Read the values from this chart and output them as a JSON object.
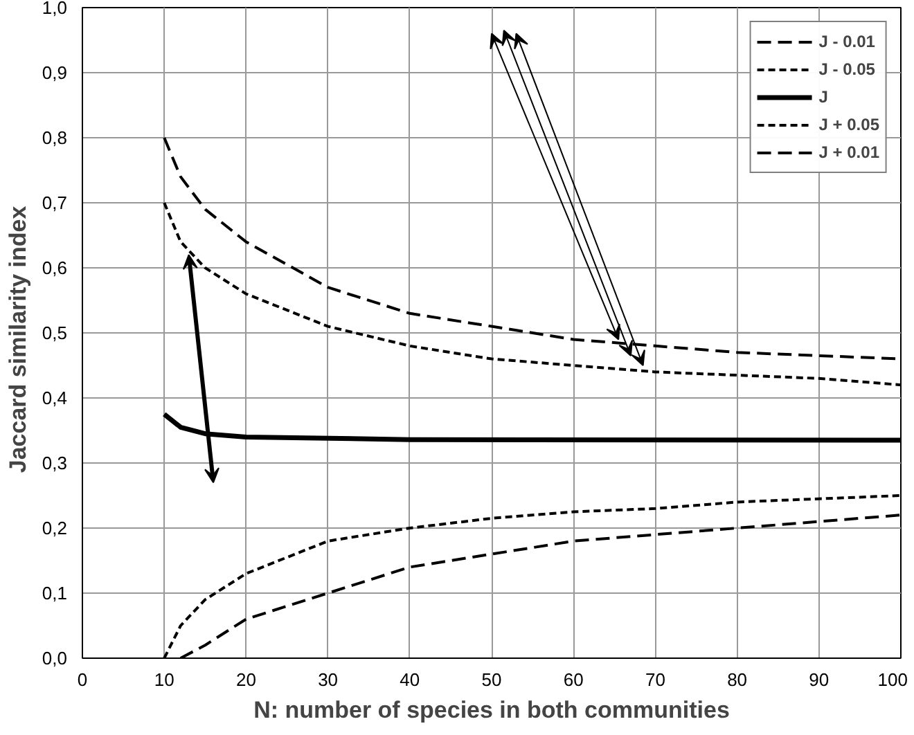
{
  "chart_data": {
    "type": "line",
    "xlabel": "N: number of species in both communities",
    "ylabel": "Jaccard  similarity  index",
    "xlim": [
      0,
      100
    ],
    "xticks": [
      0,
      10,
      20,
      30,
      40,
      50,
      60,
      70,
      80,
      90,
      100
    ],
    "ylim": [
      0,
      1
    ],
    "yticks": [
      {
        "value": 0,
        "label": "0,0"
      },
      {
        "value": 0.1,
        "label": "0,1"
      },
      {
        "value": 0.2,
        "label": "0,2"
      },
      {
        "value": 0.3,
        "label": "0,3"
      },
      {
        "value": 0.4,
        "label": "0,4"
      },
      {
        "value": 0.5,
        "label": "0,5"
      },
      {
        "value": 0.6,
        "label": "0,6"
      },
      {
        "value": 0.7,
        "label": "0,7"
      },
      {
        "value": 0.8,
        "label": "0,8"
      },
      {
        "value": 0.9,
        "label": "0,9"
      },
      {
        "value": 1,
        "label": "1,0"
      }
    ],
    "grid": true,
    "legend": "top right",
    "marker": "none",
    "series": [
      {
        "name": "J - 0.01",
        "color": "#000000",
        "line_style": "dashed",
        "x": [
          12,
          15,
          20,
          30,
          40,
          50,
          60,
          70,
          80,
          90,
          100
        ],
        "values": [
          0.0,
          0.02,
          0.06,
          0.1,
          0.14,
          0.16,
          0.18,
          0.19,
          0.2,
          0.21,
          0.22
        ]
      },
      {
        "name": "J - 0.05",
        "color": "#000000",
        "line_style": "dotted",
        "x": [
          10,
          12,
          15,
          20,
          30,
          40,
          50,
          60,
          70,
          80,
          90,
          100
        ],
        "values": [
          0.0,
          0.05,
          0.09,
          0.13,
          0.18,
          0.2,
          0.215,
          0.225,
          0.23,
          0.24,
          0.245,
          0.25
        ]
      },
      {
        "name": "J",
        "color": "#000000",
        "line_style": "solid",
        "x": [
          10,
          12,
          15,
          20,
          40,
          100
        ],
        "values": [
          0.375,
          0.355,
          0.345,
          0.34,
          0.336,
          0.335
        ]
      },
      {
        "name": "J + 0.05",
        "color": "#000000",
        "line_style": "dotted",
        "x": [
          10,
          12,
          15,
          20,
          30,
          40,
          50,
          60,
          70,
          80,
          90,
          100
        ],
        "values": [
          0.7,
          0.64,
          0.6,
          0.56,
          0.51,
          0.48,
          0.46,
          0.45,
          0.44,
          0.435,
          0.43,
          0.42
        ]
      },
      {
        "name": "J + 0.01",
        "color": "#000000",
        "line_style": "dashed",
        "x": [
          10,
          12,
          15,
          20,
          30,
          40,
          50,
          60,
          70,
          80,
          90,
          100
        ],
        "values": [
          0.8,
          0.74,
          0.69,
          0.64,
          0.57,
          0.53,
          0.51,
          0.49,
          0.48,
          0.47,
          0.465,
          0.46
        ]
      }
    ]
  }
}
